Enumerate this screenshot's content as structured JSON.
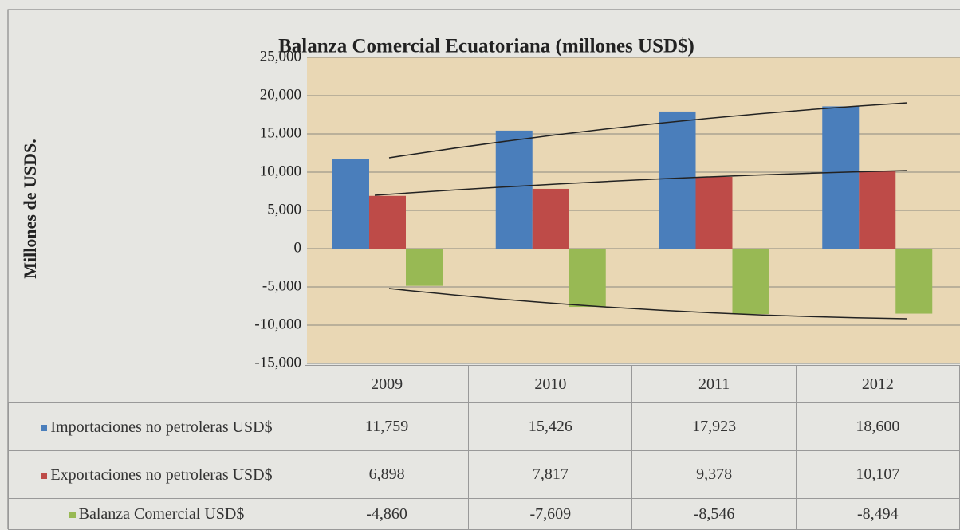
{
  "chart_data": {
    "type": "bar",
    "title": "Balanza Comercial Ecuatoriana (millones USD$)",
    "y_label": "Millones de USDS.",
    "categories": [
      "2009",
      "2010",
      "2011",
      "2012"
    ],
    "series": [
      {
        "name": "Importaciones no petroleras USD$",
        "color": "#4a7ebb",
        "values": [
          11759,
          15426,
          17923,
          18600
        ],
        "value_labels": [
          "11,759",
          "15,426",
          "17,923",
          "18,600"
        ]
      },
      {
        "name": "Exportaciones no petroleras USD$",
        "color": "#be4b48",
        "values": [
          6898,
          7817,
          9378,
          10107
        ],
        "value_labels": [
          "6,898",
          "7,817",
          "9,378",
          "10,107"
        ]
      },
      {
        "name": "Balanza Comercial USD$",
        "color": "#98b954",
        "values": [
          -4860,
          -7609,
          -8546,
          -8494
        ],
        "value_labels": [
          "-4,860",
          "-7,609",
          "-8,546",
          "-8,494"
        ]
      }
    ],
    "ylim": [
      -15000,
      25000
    ],
    "yticks": [
      {
        "value": -15000,
        "label": "-15,000"
      },
      {
        "value": -10000,
        "label": "-10,000"
      },
      {
        "value": -5000,
        "label": "-5,000"
      },
      0,
      {
        "value": 5000,
        "label": "5,000"
      },
      {
        "value": 10000,
        "label": "10,000"
      },
      {
        "value": 15000,
        "label": "15,000"
      },
      {
        "value": 20000,
        "label": "20,000"
      },
      {
        "value": 25000,
        "label": "25,000"
      }
    ],
    "grid": true
  }
}
